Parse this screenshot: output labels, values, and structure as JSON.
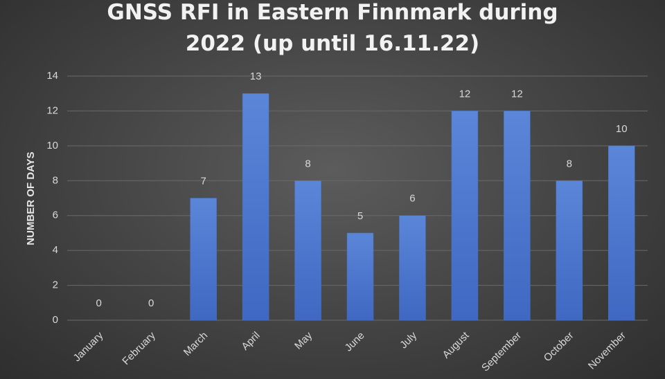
{
  "chart_data": {
    "type": "bar",
    "title": "GNSS RFI in Eastern Finnmark during 2022 (up until 16.11.22)",
    "y_label": "NUMBER OF DAYS",
    "categories": [
      "January",
      "February",
      "March",
      "April",
      "May",
      "June",
      "July",
      "August",
      "September",
      "October",
      "November"
    ],
    "values": [
      0,
      0,
      7,
      13,
      8,
      5,
      6,
      12,
      12,
      8,
      10
    ],
    "color": "#4472c4",
    "ylim": [
      0,
      14
    ],
    "yticks": [
      0,
      2,
      4,
      6,
      8,
      10,
      12,
      14
    ],
    "grid": true,
    "data_labels": true
  }
}
